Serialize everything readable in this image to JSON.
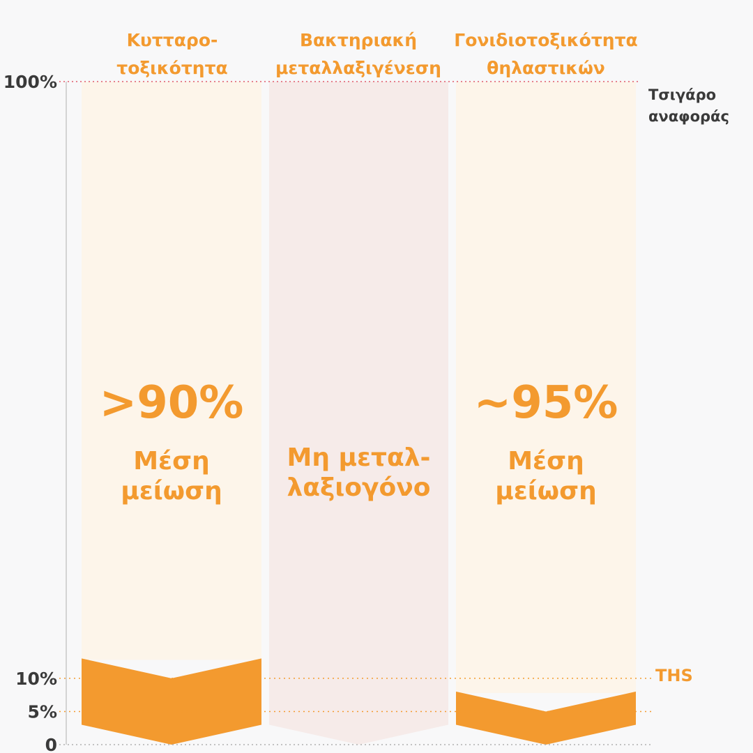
{
  "colors": {
    "accent": "#f39a2f",
    "band_light": "#fdf5ea",
    "band_pink": "#f6ebe9",
    "reference_line": "#e05b6a",
    "ths_line": "#f39a2f",
    "axis_text": "#3a3a3a"
  },
  "chart_data": {
    "type": "bar",
    "categories": [
      "Κυτταρο-τοξικότητα",
      "Βακτηριακή μεταλλαξιγένεση",
      "Γονιδιοτοξικότητα θηλαστικών"
    ],
    "column_header_lines": [
      [
        "Κυτταρο-",
        "τοξικότητα"
      ],
      [
        "Βακτηριακή",
        "μεταλλαξιγένεση"
      ],
      [
        "Γονιδιοτοξικότητα",
        "θηλαστικών"
      ]
    ],
    "y_ticks": [
      {
        "value": 100,
        "label": "100%"
      },
      {
        "value": 10,
        "label": "10%"
      },
      {
        "value": 5,
        "label": "5%"
      },
      {
        "value": 0,
        "label": "0"
      }
    ],
    "ylim": [
      0,
      100
    ],
    "reference": {
      "value": 100,
      "label_lines": [
        "Τσιγάρο",
        "αναφοράς"
      ]
    },
    "ths": {
      "range": [
        5,
        10
      ],
      "label": "THS"
    },
    "bars": [
      {
        "top_edge": 13,
        "top_center": 10,
        "bottom_edge": 3,
        "bottom_center": 0,
        "big": ">90%",
        "text_lines": [
          "Μέση",
          "μείωση"
        ],
        "filled": true
      },
      {
        "top_edge": 100,
        "top_center": 100,
        "bottom_edge": 3,
        "bottom_center": 0,
        "big": "",
        "text_lines": [
          "Μη μεταλ-",
          "λαξιογόνο"
        ],
        "filled": false
      },
      {
        "top_edge": 8,
        "top_center": 5,
        "bottom_edge": 3,
        "bottom_center": 0,
        "big": "~95%",
        "text_lines": [
          "Μέση",
          "μείωση"
        ],
        "filled": true
      }
    ]
  }
}
